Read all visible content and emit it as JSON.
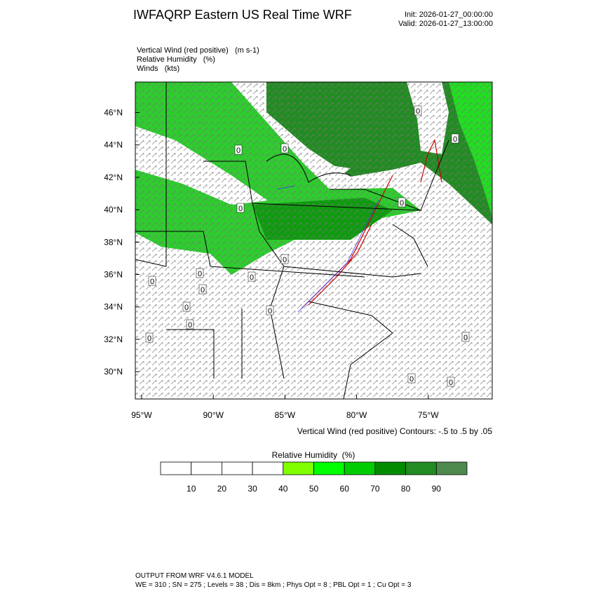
{
  "header": {
    "title": "IWFAQRP Eastern US Real Time WRF",
    "init": "Init: 2026-01-27_00:00:00",
    "valid": "Valid: 2026-01-27_13:00:00"
  },
  "fields": [
    "Vertical Wind (red positive)   (m s-1)",
    "Relative Humidity   (%)",
    "Winds   (kts)"
  ],
  "map": {
    "lat_labels": [
      "46°N",
      "44°N",
      "42°N",
      "40°N",
      "38°N",
      "36°N",
      "34°N",
      "32°N",
      "30°N"
    ],
    "lon_labels": [
      "95°W",
      "90°W",
      "85°W",
      "80°W",
      "75°W"
    ],
    "contour_labels": [
      "0",
      "0",
      "0",
      "0",
      "0",
      "0",
      "0",
      "0",
      "0",
      "0",
      "0",
      "0",
      "0",
      "0",
      "0",
      "0",
      "0",
      "0"
    ],
    "contour_note": "Vertical Wind (red positive) Contours: -.5 to .5 by .05"
  },
  "colorbar": {
    "title": "Relative Humidity  (%)",
    "labels": [
      "10",
      "20",
      "30",
      "40",
      "50",
      "60",
      "70",
      "80",
      "90"
    ],
    "colors": [
      "#ffffff",
      "#ffffff",
      "#ffffff",
      "#ffffff",
      "#7fff00",
      "#00ff00",
      "#00cd00",
      "#008b00",
      "#228b22",
      "#4e8a4e"
    ]
  },
  "footer": {
    "line1": "OUTPUT FROM WRF V4.6.1 MODEL",
    "line2": "WE = 310 ; SN = 275 ; Levels = 38 ; Dis = 8km ; Phys Opt = 8 ; PBL Opt = 1 ; Cu Opt = 3"
  }
}
